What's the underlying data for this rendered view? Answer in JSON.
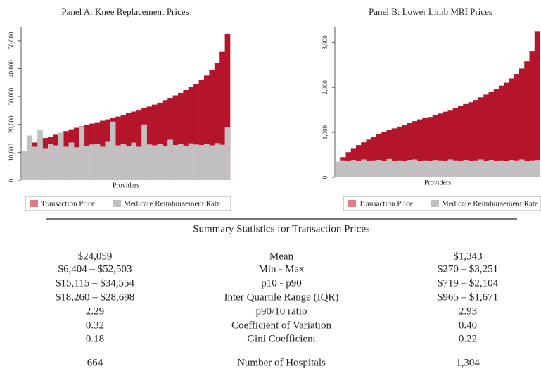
{
  "chart_data": [
    {
      "type": "bar",
      "title": "Panel A: Knee Replacement Prices",
      "x_label": "Providers",
      "ylim": [
        0,
        55000
      ],
      "yticks": [
        0,
        {
          "value": 10000,
          "label": "10,000"
        },
        {
          "value": 20000,
          "label": "20,000"
        },
        {
          "value": 30000,
          "label": "30,000"
        },
        {
          "value": 40000,
          "label": "40,000"
        },
        {
          "value": 50000,
          "label": "50,000"
        }
      ],
      "legend": "bottom",
      "series": [
        {
          "name": "Transaction Price",
          "color": "#b5152b",
          "values": [
            6404,
            12000,
            13500,
            14500,
            15115,
            15600,
            16300,
            17000,
            17600,
            18260,
            18800,
            19300,
            19800,
            20300,
            20800,
            21300,
            21800,
            22300,
            22800,
            23400,
            24059,
            24600,
            25200,
            25800,
            26400,
            27100,
            27800,
            28698,
            29500,
            30400,
            31300,
            32300,
            33400,
            34554,
            36000,
            37500,
            39500,
            42000,
            46000,
            52503
          ]
        },
        {
          "name": "Medicare Reimbursement Rate",
          "color": "#c2c0c0",
          "values": [
            10500,
            16000,
            12000,
            18000,
            11500,
            13000,
            12500,
            17000,
            12000,
            13500,
            11800,
            19000,
            12300,
            12800,
            13000,
            12000,
            14000,
            21000,
            12500,
            13000,
            12200,
            13500,
            12000,
            20000,
            12800,
            12500,
            13000,
            12300,
            14500,
            12600,
            13000,
            12400,
            13200,
            12800,
            12600,
            13000,
            12500,
            13300,
            12700,
            19000
          ]
        }
      ]
    },
    {
      "type": "bar",
      "title": "Panel B: Lower Limb MRI Prices",
      "x_label": "Providers",
      "ylim": [
        0,
        3350
      ],
      "yticks": [
        0,
        {
          "value": 1000,
          "label": "1,000"
        },
        {
          "value": 2000,
          "label": "2,000"
        },
        {
          "value": 3000,
          "label": "3,000"
        }
      ],
      "legend": "bottom",
      "series": [
        {
          "name": "Transaction Price",
          "color": "#b5152b",
          "values": [
            270,
            450,
            560,
            650,
            719,
            780,
            840,
            900,
            965,
            1010,
            1050,
            1090,
            1130,
            1170,
            1210,
            1250,
            1290,
            1320,
            1343,
            1380,
            1420,
            1460,
            1500,
            1540,
            1590,
            1630,
            1671,
            1720,
            1780,
            1840,
            1900,
            1970,
            2040,
            2104,
            2200,
            2300,
            2420,
            2580,
            2800,
            3251
          ]
        },
        {
          "name": "Medicare Reimbursement Rate",
          "color": "#c2c0c0",
          "values": [
            350,
            380,
            360,
            390,
            370,
            400,
            360,
            380,
            390,
            370,
            410,
            360,
            380,
            370,
            390,
            400,
            370,
            380,
            360,
            390,
            380,
            370,
            400,
            380,
            360,
            390,
            370,
            380,
            400,
            370,
            390,
            360,
            380,
            370,
            390,
            380,
            400,
            370,
            380,
            390
          ]
        }
      ]
    }
  ],
  "summary": {
    "title": "Summary Statistics for Transaction Prices",
    "rows": [
      [
        "$24,059",
        "Mean",
        "$1,343"
      ],
      [
        "$6,404 – $52,503",
        "Min - Max",
        "$270 – $3,251"
      ],
      [
        "$15,115 – $34,554",
        "p10 - p90",
        "$719 – $2,104"
      ],
      [
        "$18,260 – $28,698",
        "Inter Quartile Range (IQR)",
        "$965 – $1,671"
      ],
      [
        "2.29",
        "p90/10 ratio",
        "2.93"
      ],
      [
        "0.32",
        "Coefficient of Variation",
        "0.40"
      ],
      [
        "0.18",
        "Gini Coefficient",
        "0.22"
      ],
      [
        "664",
        "Number of Hospitals",
        "1,304"
      ]
    ]
  }
}
